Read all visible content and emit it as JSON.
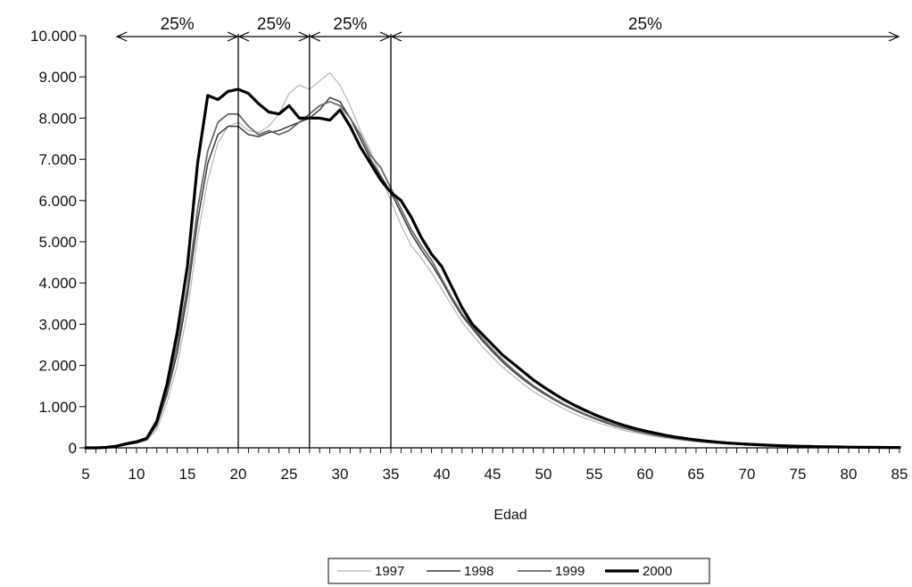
{
  "chart_data": {
    "type": "line",
    "title": "",
    "xlabel": "Edad",
    "ylabel": "",
    "xlim": [
      5,
      85
    ],
    "ylim": [
      0,
      10000
    ],
    "x_ticks": [
      "5",
      "10",
      "15",
      "20",
      "25",
      "30",
      "35",
      "40",
      "45",
      "50",
      "55",
      "60",
      "65",
      "70",
      "75",
      "80",
      "85"
    ],
    "y_ticks": [
      "10.000",
      "9.000",
      "8.000",
      "7.000",
      "6.000",
      "5.000",
      "4.000",
      "3.000",
      "2.000",
      "1.000",
      "0"
    ],
    "grid": false,
    "legend_position": "bottom-center",
    "x": [
      5,
      6,
      7,
      8,
      9,
      10,
      11,
      12,
      13,
      14,
      15,
      16,
      17,
      18,
      19,
      20,
      21,
      22,
      23,
      24,
      25,
      26,
      27,
      28,
      29,
      30,
      31,
      32,
      33,
      34,
      35,
      36,
      37,
      38,
      39,
      40,
      41,
      42,
      43,
      44,
      45,
      46,
      47,
      48,
      49,
      50,
      51,
      52,
      53,
      54,
      55,
      56,
      57,
      58,
      59,
      60,
      61,
      62,
      63,
      64,
      65,
      66,
      67,
      68,
      69,
      70,
      71,
      72,
      73,
      74,
      75,
      76,
      77,
      78,
      79,
      80,
      81,
      82,
      83,
      84,
      85
    ],
    "series": [
      {
        "name": "1997",
        "color": "#b5b5b5",
        "width": 1.2,
        "values": [
          0,
          0,
          10,
          30,
          70,
          110,
          180,
          450,
          1100,
          2000,
          3300,
          5100,
          6500,
          7400,
          7800,
          7900,
          7700,
          7650,
          7800,
          8100,
          8600,
          8800,
          8700,
          8900,
          9100,
          8800,
          8300,
          7700,
          7200,
          6600,
          6000,
          5400,
          4900,
          4600,
          4250,
          3850,
          3450,
          3050,
          2750,
          2450,
          2200,
          1950,
          1750,
          1550,
          1370,
          1220,
          1080,
          950,
          830,
          730,
          640,
          560,
          490,
          420,
          370,
          320,
          280,
          240,
          205,
          175,
          150,
          128,
          110,
          95,
          82,
          70,
          60,
          52,
          45,
          39,
          34,
          29,
          25,
          22,
          19,
          16,
          14,
          12,
          10,
          9,
          8
        ]
      },
      {
        "name": "1998",
        "color": "#3a3a3a",
        "width": 1.5,
        "values": [
          0,
          0,
          10,
          30,
          80,
          120,
          200,
          550,
          1300,
          2300,
          3700,
          5500,
          6900,
          7600,
          7800,
          7800,
          7600,
          7550,
          7650,
          7700,
          7800,
          7900,
          8000,
          8200,
          8500,
          8400,
          8000,
          7500,
          7000,
          6600,
          6200,
          5700,
          5200,
          4800,
          4450,
          4050,
          3600,
          3200,
          2900,
          2600,
          2330,
          2080,
          1860,
          1660,
          1480,
          1320,
          1170,
          1040,
          920,
          810,
          710,
          620,
          540,
          470,
          410,
          355,
          305,
          262,
          225,
          193,
          165,
          141,
          120,
          103,
          88,
          75,
          64,
          55,
          47,
          40,
          34,
          29,
          25,
          21,
          18,
          15,
          13,
          11,
          9,
          8,
          7
        ]
      },
      {
        "name": "1999",
        "color": "#6a6a6a",
        "width": 1.8,
        "values": [
          0,
          0,
          10,
          40,
          90,
          140,
          220,
          600,
          1400,
          2500,
          3900,
          5800,
          7200,
          7900,
          8100,
          8100,
          7800,
          7600,
          7700,
          7600,
          7700,
          7900,
          8100,
          8300,
          8400,
          8300,
          8000,
          7600,
          7100,
          6800,
          6300,
          5800,
          5300,
          4900,
          4550,
          4100,
          3650,
          3250,
          2950,
          2650,
          2380,
          2130,
          1900,
          1700,
          1510,
          1350,
          1200,
          1060,
          940,
          830,
          730,
          640,
          555,
          485,
          420,
          365,
          315,
          270,
          232,
          198,
          170,
          145,
          124,
          106,
          90,
          77,
          66,
          56,
          48,
          41,
          35,
          30,
          26,
          22,
          19,
          16,
          14,
          12,
          10,
          9,
          8
        ]
      },
      {
        "name": "2000",
        "color": "#000000",
        "width": 3.2,
        "values": [
          0,
          0,
          10,
          40,
          100,
          150,
          230,
          650,
          1550,
          2800,
          4400,
          6900,
          8550,
          8450,
          8650,
          8700,
          8600,
          8350,
          8150,
          8100,
          8300,
          8000,
          8000,
          8000,
          7950,
          8200,
          7800,
          7300,
          6900,
          6500,
          6200,
          6000,
          5600,
          5100,
          4700,
          4400,
          3900,
          3400,
          3000,
          2750,
          2500,
          2250,
          2050,
          1850,
          1650,
          1480,
          1320,
          1170,
          1040,
          920,
          810,
          710,
          620,
          540,
          470,
          410,
          355,
          305,
          262,
          225,
          193,
          165,
          141,
          120,
          103,
          88,
          75,
          64,
          55,
          47,
          40,
          34,
          29,
          25,
          21,
          18,
          15,
          13,
          11,
          9,
          8
        ]
      }
    ],
    "annotations": {
      "dividers": [
        20,
        27,
        35
      ],
      "span_start": 8,
      "span_end": 85,
      "labels": [
        {
          "text": "25%",
          "x": 14
        },
        {
          "text": "25%",
          "x": 23.5
        },
        {
          "text": "25%",
          "x": 31
        },
        {
          "text": "25%",
          "x": 60
        }
      ]
    }
  }
}
